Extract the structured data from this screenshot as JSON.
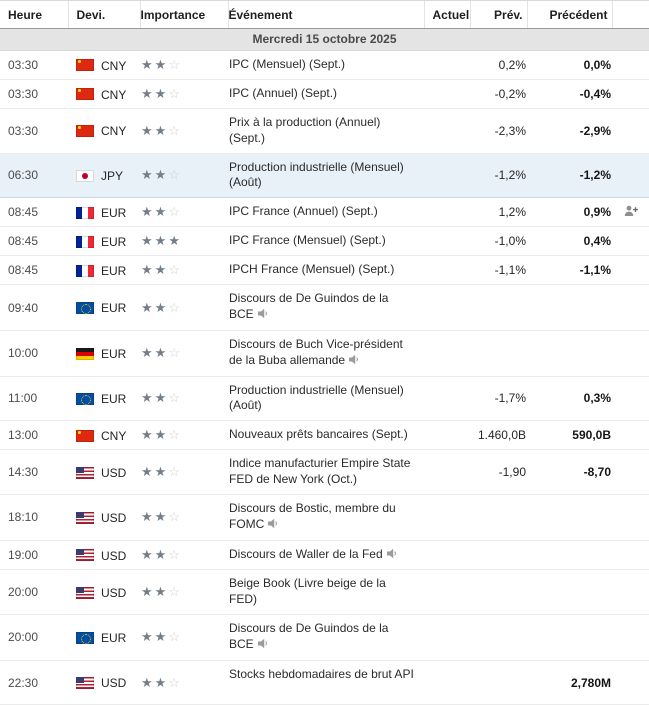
{
  "header": {
    "columns": [
      "Heure",
      "Devi.",
      "Importance",
      "Événement",
      "Actuel",
      "Prév.",
      "Précédent"
    ]
  },
  "date_header": "Mercredi 15 octobre 2025",
  "colors": {
    "highlight_row_bg": "#e8f1f8",
    "date_bar_bg": "#e4e4e4",
    "star_filled": "#747e89",
    "star_empty": "#cdd0d3",
    "previous_value_text": "#151515"
  },
  "icons": {
    "speaker": "speaker-icon",
    "follow_plus": "follow-plus-icon",
    "star_filled": "star-filled-icon",
    "star_empty": "star-empty-icon"
  },
  "rows": [
    {
      "time": "03:30",
      "currency": "CNY",
      "flag": "cn",
      "stars": 2,
      "event": "IPC (Mensuel) (Sept.)",
      "speaker": false,
      "actual": "",
      "forecast": "0,2%",
      "previous": "0,0%",
      "highlight": false,
      "follow_icon": false
    },
    {
      "time": "03:30",
      "currency": "CNY",
      "flag": "cn",
      "stars": 2,
      "event": "IPC (Annuel) (Sept.)",
      "speaker": false,
      "actual": "",
      "forecast": "-0,2%",
      "previous": "-0,4%",
      "highlight": false,
      "follow_icon": false
    },
    {
      "time": "03:30",
      "currency": "CNY",
      "flag": "cn",
      "stars": 2,
      "event": "Prix à la production (Annuel) (Sept.)",
      "speaker": false,
      "actual": "",
      "forecast": "-2,3%",
      "previous": "-2,9%",
      "highlight": false,
      "follow_icon": false
    },
    {
      "time": "06:30",
      "currency": "JPY",
      "flag": "jp",
      "stars": 2,
      "event": "Production industrielle (Mensuel) (Août)",
      "speaker": false,
      "actual": "",
      "forecast": "-1,2%",
      "previous": "-1,2%",
      "highlight": true,
      "follow_icon": false
    },
    {
      "time": "08:45",
      "currency": "EUR",
      "flag": "fr",
      "stars": 2,
      "event": "IPC France (Annuel) (Sept.)",
      "speaker": false,
      "actual": "",
      "forecast": "1,2%",
      "previous": "0,9%",
      "highlight": false,
      "follow_icon": true
    },
    {
      "time": "08:45",
      "currency": "EUR",
      "flag": "fr",
      "stars": 3,
      "event": "IPC France (Mensuel) (Sept.)",
      "speaker": false,
      "actual": "",
      "forecast": "-1,0%",
      "previous": "0,4%",
      "highlight": false,
      "follow_icon": false
    },
    {
      "time": "08:45",
      "currency": "EUR",
      "flag": "fr",
      "stars": 2,
      "event": "IPCH France (Mensuel) (Sept.)",
      "speaker": false,
      "actual": "",
      "forecast": "-1,1%",
      "previous": "-1,1%",
      "highlight": false,
      "follow_icon": false
    },
    {
      "time": "09:40",
      "currency": "EUR",
      "flag": "eu",
      "stars": 2,
      "event": "Discours de De Guindos de la BCE",
      "speaker": true,
      "actual": "",
      "forecast": "",
      "previous": "",
      "highlight": false,
      "follow_icon": false
    },
    {
      "time": "10:00",
      "currency": "EUR",
      "flag": "de",
      "stars": 2,
      "event": "Discours de Buch Vice-président de la Buba allemande",
      "speaker": true,
      "actual": "",
      "forecast": "",
      "previous": "",
      "highlight": false,
      "follow_icon": false
    },
    {
      "time": "11:00",
      "currency": "EUR",
      "flag": "eu",
      "stars": 2,
      "event": "Production industrielle (Mensuel) (Août)",
      "speaker": false,
      "actual": "",
      "forecast": "-1,7%",
      "previous": "0,3%",
      "highlight": false,
      "follow_icon": false
    },
    {
      "time": "13:00",
      "currency": "CNY",
      "flag": "cn",
      "stars": 2,
      "event": "Nouveaux prêts bancaires (Sept.)",
      "speaker": false,
      "actual": "",
      "forecast": "1.460,0B",
      "previous": "590,0B",
      "highlight": false,
      "follow_icon": false
    },
    {
      "time": "14:30",
      "currency": "USD",
      "flag": "us",
      "stars": 2,
      "event": "Indice manufacturier Empire State FED de New York (Oct.)",
      "speaker": false,
      "actual": "",
      "forecast": "-1,90",
      "previous": "-8,70",
      "highlight": false,
      "follow_icon": false
    },
    {
      "time": "18:10",
      "currency": "USD",
      "flag": "us",
      "stars": 2,
      "event": "Discours de Bostic, membre du FOMC",
      "speaker": true,
      "actual": "",
      "forecast": "",
      "previous": "",
      "highlight": false,
      "follow_icon": false
    },
    {
      "time": "19:00",
      "currency": "USD",
      "flag": "us",
      "stars": 2,
      "event": "Discours de Waller de la Fed",
      "speaker": true,
      "actual": "",
      "forecast": "",
      "previous": "",
      "highlight": false,
      "follow_icon": false
    },
    {
      "time": "20:00",
      "currency": "USD",
      "flag": "us",
      "stars": 2,
      "event": "Beige Book (Livre beige de la FED)",
      "speaker": false,
      "actual": "",
      "forecast": "",
      "previous": "",
      "highlight": false,
      "follow_icon": false
    },
    {
      "time": "20:00",
      "currency": "EUR",
      "flag": "eu",
      "stars": 2,
      "event": "Discours de De Guindos de la BCE",
      "speaker": true,
      "actual": "",
      "forecast": "",
      "previous": "",
      "highlight": false,
      "follow_icon": false
    },
    {
      "time": "22:30",
      "currency": "USD",
      "flag": "us",
      "stars": 2,
      "event": "Stocks hebdomadaires de brut API",
      "speaker": false,
      "actual": "",
      "forecast": "",
      "previous": "2,780M",
      "highlight": false,
      "follow_icon": false
    }
  ]
}
